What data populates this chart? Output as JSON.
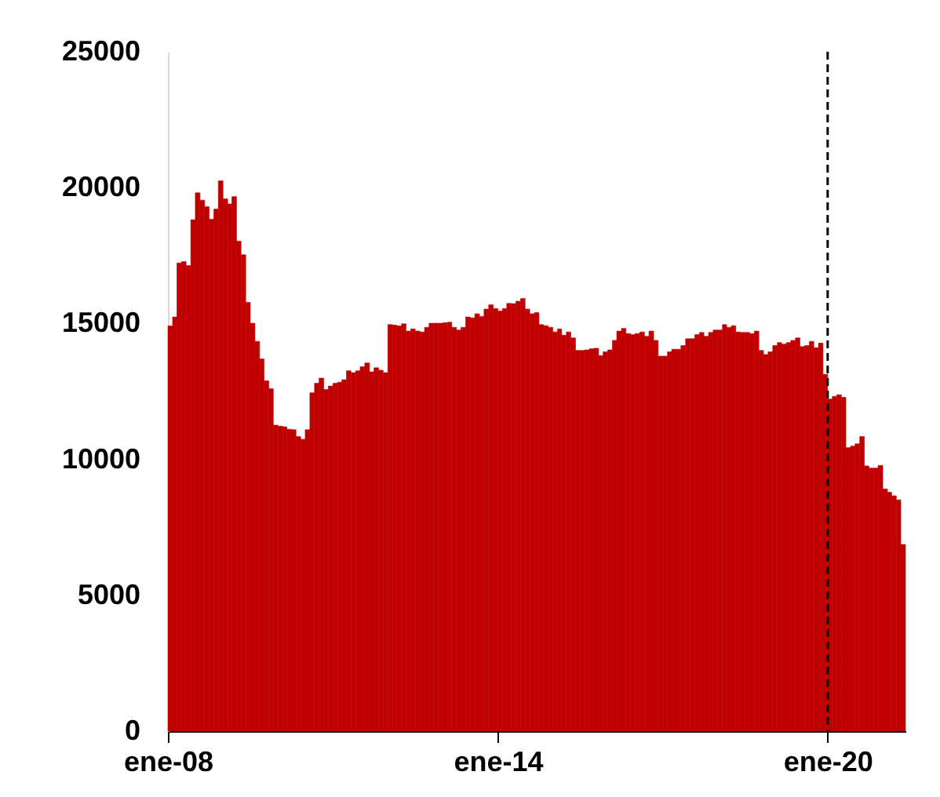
{
  "chart_data": {
    "type": "bar",
    "color": "#c00000",
    "grid": false,
    "x": [
      "2008-01",
      "2008-02",
      "2008-03",
      "2008-04",
      "2008-05",
      "2008-06",
      "2008-07",
      "2008-08",
      "2008-09",
      "2008-10",
      "2008-11",
      "2008-12",
      "2009-01",
      "2009-02",
      "2009-03",
      "2009-04",
      "2009-05",
      "2009-06",
      "2009-07",
      "2009-08",
      "2009-09",
      "2009-10",
      "2009-11",
      "2009-12",
      "2010-01",
      "2010-02",
      "2010-03",
      "2010-04",
      "2010-05",
      "2010-06",
      "2010-07",
      "2010-08",
      "2010-09",
      "2010-10",
      "2010-11",
      "2010-12",
      "2011-01",
      "2011-02",
      "2011-03",
      "2011-04",
      "2011-05",
      "2011-06",
      "2011-07",
      "2011-08",
      "2011-09",
      "2011-10",
      "2011-11",
      "2011-12",
      "2012-01",
      "2012-02",
      "2012-03",
      "2012-04",
      "2012-05",
      "2012-06",
      "2012-07",
      "2012-08",
      "2012-09",
      "2012-10",
      "2012-11",
      "2012-12",
      "2013-01",
      "2013-02",
      "2013-03",
      "2013-04",
      "2013-05",
      "2013-06",
      "2013-07",
      "2013-08",
      "2013-09",
      "2013-10",
      "2013-11",
      "2013-12",
      "2014-01",
      "2014-02",
      "2014-03",
      "2014-04",
      "2014-05",
      "2014-06",
      "2014-07",
      "2014-08",
      "2014-09",
      "2014-10",
      "2014-11",
      "2014-12",
      "2015-01",
      "2015-02",
      "2015-03",
      "2015-04",
      "2015-05",
      "2015-06",
      "2015-07",
      "2015-08",
      "2015-09",
      "2015-10",
      "2015-11",
      "2015-12",
      "2016-01",
      "2016-02",
      "2016-03",
      "2016-04",
      "2016-05",
      "2016-06",
      "2016-07",
      "2016-08",
      "2016-09",
      "2016-10",
      "2016-11",
      "2016-12",
      "2017-01",
      "2017-02",
      "2017-03",
      "2017-04",
      "2017-05",
      "2017-06",
      "2017-07",
      "2017-08",
      "2017-09",
      "2017-10",
      "2017-11",
      "2017-12",
      "2018-01",
      "2018-02",
      "2018-03",
      "2018-04",
      "2018-05",
      "2018-06",
      "2018-07",
      "2018-08",
      "2018-09",
      "2018-10",
      "2018-11",
      "2018-12",
      "2019-01",
      "2019-02",
      "2019-03",
      "2019-04",
      "2019-05",
      "2019-06",
      "2019-07",
      "2019-08",
      "2019-09",
      "2019-10",
      "2019-11",
      "2019-12",
      "2020-01",
      "2020-02",
      "2020-03",
      "2020-04",
      "2020-05",
      "2020-06",
      "2020-07",
      "2020-08",
      "2020-09",
      "2020-10",
      "2020-11",
      "2020-12",
      "2021-01",
      "2021-02",
      "2021-03",
      "2021-04",
      "2021-05"
    ],
    "values": [
      14910,
      15240,
      17230,
      17280,
      17130,
      18820,
      19810,
      19540,
      19300,
      18840,
      19210,
      20250,
      19590,
      19400,
      19670,
      18030,
      17530,
      15780,
      15010,
      14340,
      13700,
      12890,
      12600,
      11260,
      11220,
      11200,
      11110,
      11090,
      10840,
      10740,
      11090,
      12450,
      12800,
      12990,
      12570,
      12700,
      12800,
      12840,
      12930,
      13260,
      13190,
      13260,
      13410,
      13550,
      13220,
      13370,
      13280,
      13190,
      14960,
      14940,
      14910,
      14990,
      14720,
      14800,
      14720,
      14690,
      14860,
      15010,
      15010,
      15010,
      15030,
      15050,
      14860,
      14760,
      14860,
      15240,
      15210,
      15360,
      15260,
      15530,
      15690,
      15550,
      15460,
      15550,
      15740,
      15730,
      15820,
      15920,
      15530,
      15360,
      15400,
      14960,
      14920,
      14860,
      14690,
      14800,
      14570,
      14690,
      14470,
      14010,
      14010,
      14030,
      14070,
      14090,
      13820,
      13960,
      14030,
      14380,
      14720,
      14820,
      14630,
      14590,
      14630,
      14690,
      14530,
      14720,
      14380,
      13800,
      13800,
      13960,
      14050,
      14050,
      14190,
      14440,
      14440,
      14590,
      14670,
      14530,
      14670,
      14760,
      14760,
      14960,
      14860,
      14920,
      14690,
      14670,
      14670,
      14630,
      14720,
      14010,
      13860,
      13960,
      14190,
      14300,
      14240,
      14300,
      14380,
      14470,
      14150,
      14190,
      14340,
      14110,
      14280,
      13130,
      12220,
      12320,
      12380,
      12280,
      10430,
      10490,
      10570,
      10840,
      9760,
      9680,
      9680,
      9780,
      8910,
      8790,
      8660,
      8510,
      6870
    ],
    "xlim": [
      "2008-01",
      "2021-06"
    ],
    "xticks": [
      {
        "value": "2008-01",
        "label": "ene-08"
      },
      {
        "value": "2014-01",
        "label": "ene-14"
      },
      {
        "value": "2020-01",
        "label": "ene-20"
      }
    ],
    "ylim": [
      0,
      25000
    ],
    "yticks": [
      0,
      5000,
      10000,
      15000,
      20000,
      25000
    ],
    "ref_lines": [
      {
        "axis": "x",
        "value": "2020-01",
        "color": "#000000",
        "line_style": "dashed"
      }
    ]
  }
}
